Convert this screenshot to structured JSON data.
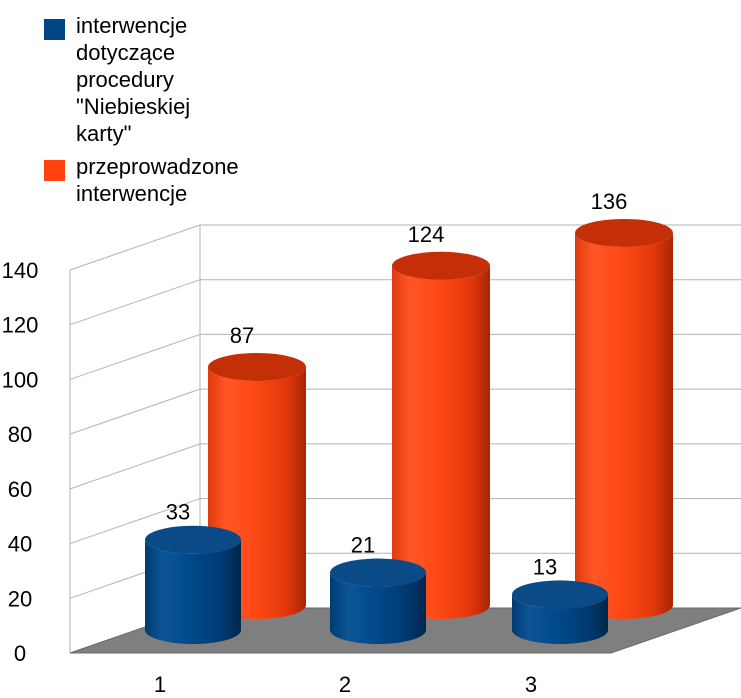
{
  "chart_data": {
    "type": "bar",
    "title": "",
    "xlabel": "",
    "ylabel": "",
    "categories": [
      "1",
      "2",
      "3"
    ],
    "series": [
      {
        "name": "interwencje\ndotyczące\nprocedury\n\"Niebieskiej\nkarty\"",
        "values": [
          33,
          21,
          13
        ],
        "color": "#004586"
      },
      {
        "name": "przeprowadzone\ninterwencje",
        "values": [
          87,
          124,
          136
        ],
        "color": "#ff420e"
      }
    ],
    "ylim": [
      0,
      140
    ],
    "yticks": [
      "0",
      "20",
      "40",
      "60",
      "80",
      "100",
      "120",
      "140"
    ],
    "grid": true,
    "legend_position": "top-left",
    "style": "3d-cylinder"
  }
}
